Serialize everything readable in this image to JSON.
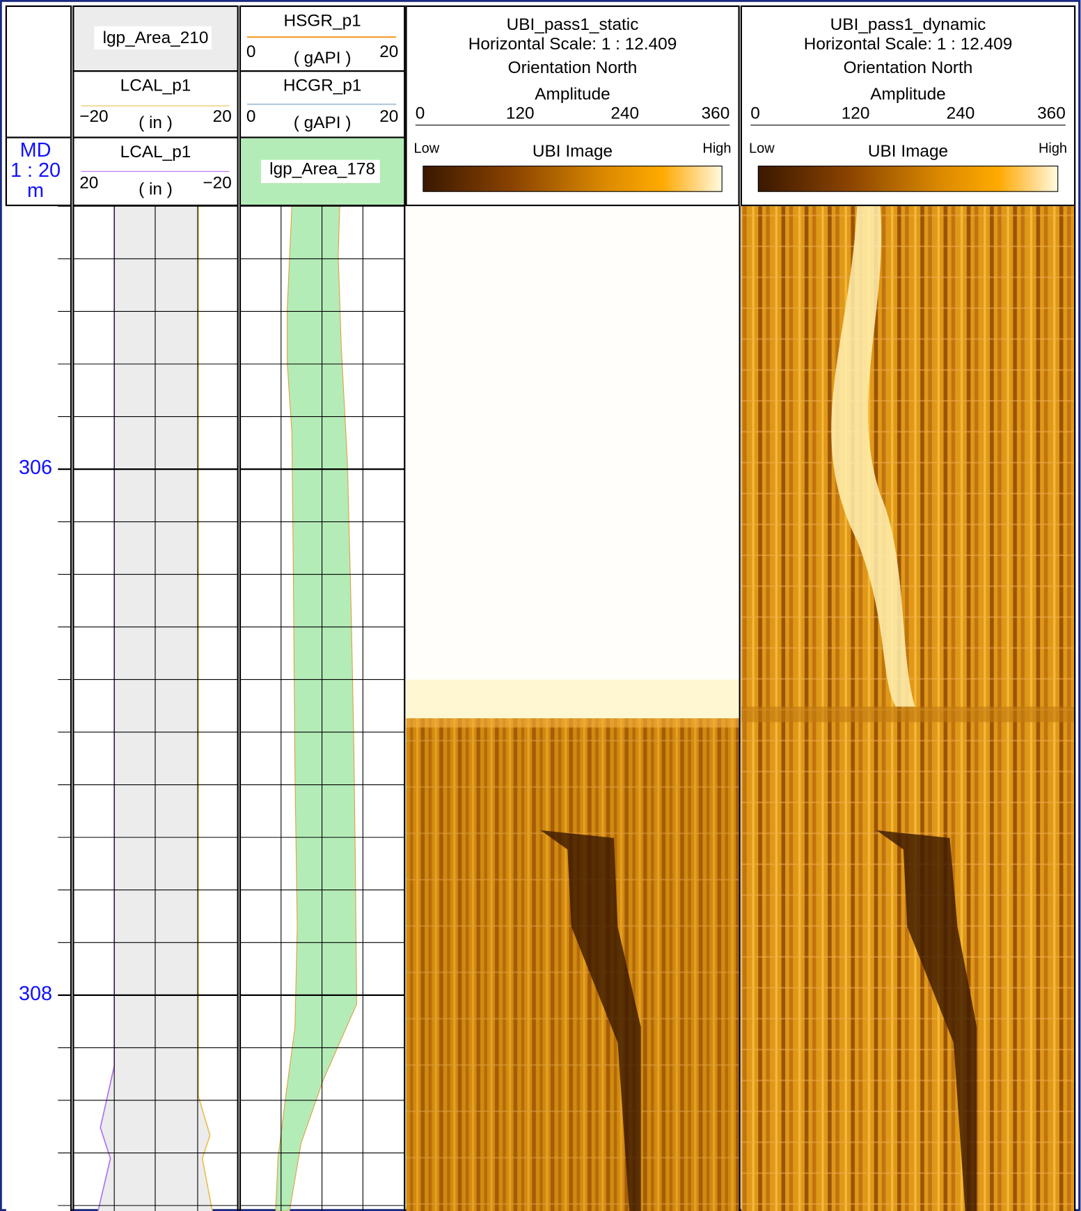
{
  "depth_track": {
    "label_lines": [
      "MD",
      "1 : 20",
      "m"
    ],
    "depths": [
      306,
      308
    ]
  },
  "tracks": [
    {
      "panels": [
        {
          "title": "lgp_Area_210"
        },
        {
          "title": "LCAL_p1",
          "left": "−20",
          "unit": "( in )",
          "right": "20"
        },
        {
          "title": "LCAL_p1",
          "left": "20",
          "unit": "( in )",
          "right": "−20"
        }
      ]
    },
    {
      "panels": [
        {
          "title": "HSGR_p1",
          "left": "0",
          "unit": "( gAPI )",
          "right": "20"
        },
        {
          "title": "HCGR_p1",
          "left": "0",
          "unit": "( gAPI )",
          "right": "20"
        },
        {
          "title": "lgp_Area_178"
        }
      ]
    },
    {
      "title_lines": [
        "UBI_pass1_static",
        "Horizontal Scale: 1 : 12.409",
        "Orientation North"
      ],
      "scale_title": "Amplitude",
      "scale_ticks": [
        "0",
        "120",
        "240",
        "360"
      ],
      "colorbar": {
        "low": "Low",
        "title": "UBI  Image",
        "high": "High"
      }
    },
    {
      "title_lines": [
        "UBI_pass1_dynamic",
        "Horizontal Scale: 1 : 12.409",
        "Orientation North"
      ],
      "scale_title": "Amplitude",
      "scale_ticks": [
        "0",
        "120",
        "240",
        "360"
      ],
      "colorbar": {
        "low": "Low",
        "title": "UBI  Image",
        "high": "High"
      }
    }
  ]
}
